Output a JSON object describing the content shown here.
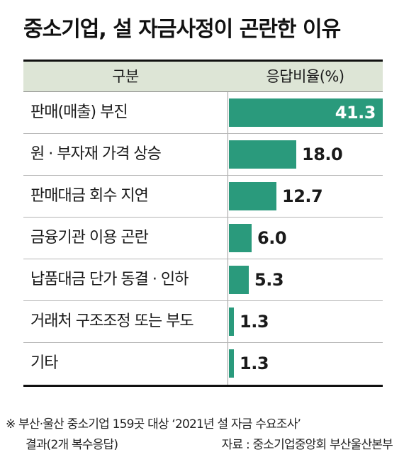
{
  "title": "중소기업, 설 자금사정이 곤란한 이유",
  "table_header": {
    "left": "구분",
    "right": "응답비율(%)"
  },
  "chart_data": {
    "type": "bar",
    "orientation": "horizontal",
    "title": "중소기업, 설 자금사정이 곤란한 이유",
    "ylabel": "구분",
    "xlabel": "응답비율(%)",
    "categories": [
      "판매(매출) 부진",
      "원 · 부자재 가격 상승",
      "판매대금 회수 지연",
      "금융기관 이용 곤란",
      "납품대금 단가 동결 · 인하",
      "거래처 구조조정 또는 부도",
      "기타"
    ],
    "values": [
      41.3,
      18.0,
      12.7,
      6.0,
      5.3,
      1.3,
      1.3
    ],
    "value_labels": [
      "41.3",
      "18.0",
      "12.7",
      "6.0",
      "5.3",
      "1.3",
      "1.3"
    ],
    "xlim": [
      0,
      41.3
    ],
    "bar_color": "#2a9a7c",
    "header_color": "#dde5d6"
  },
  "footnote": {
    "line1": "※ 부산·울산 중소기업 159곳 대상 ‘2021년 설 자금 수요조사’",
    "line2": "결과(2개 복수응답)",
    "source": "자료 : 중소기업중앙회 부산울산본부"
  }
}
